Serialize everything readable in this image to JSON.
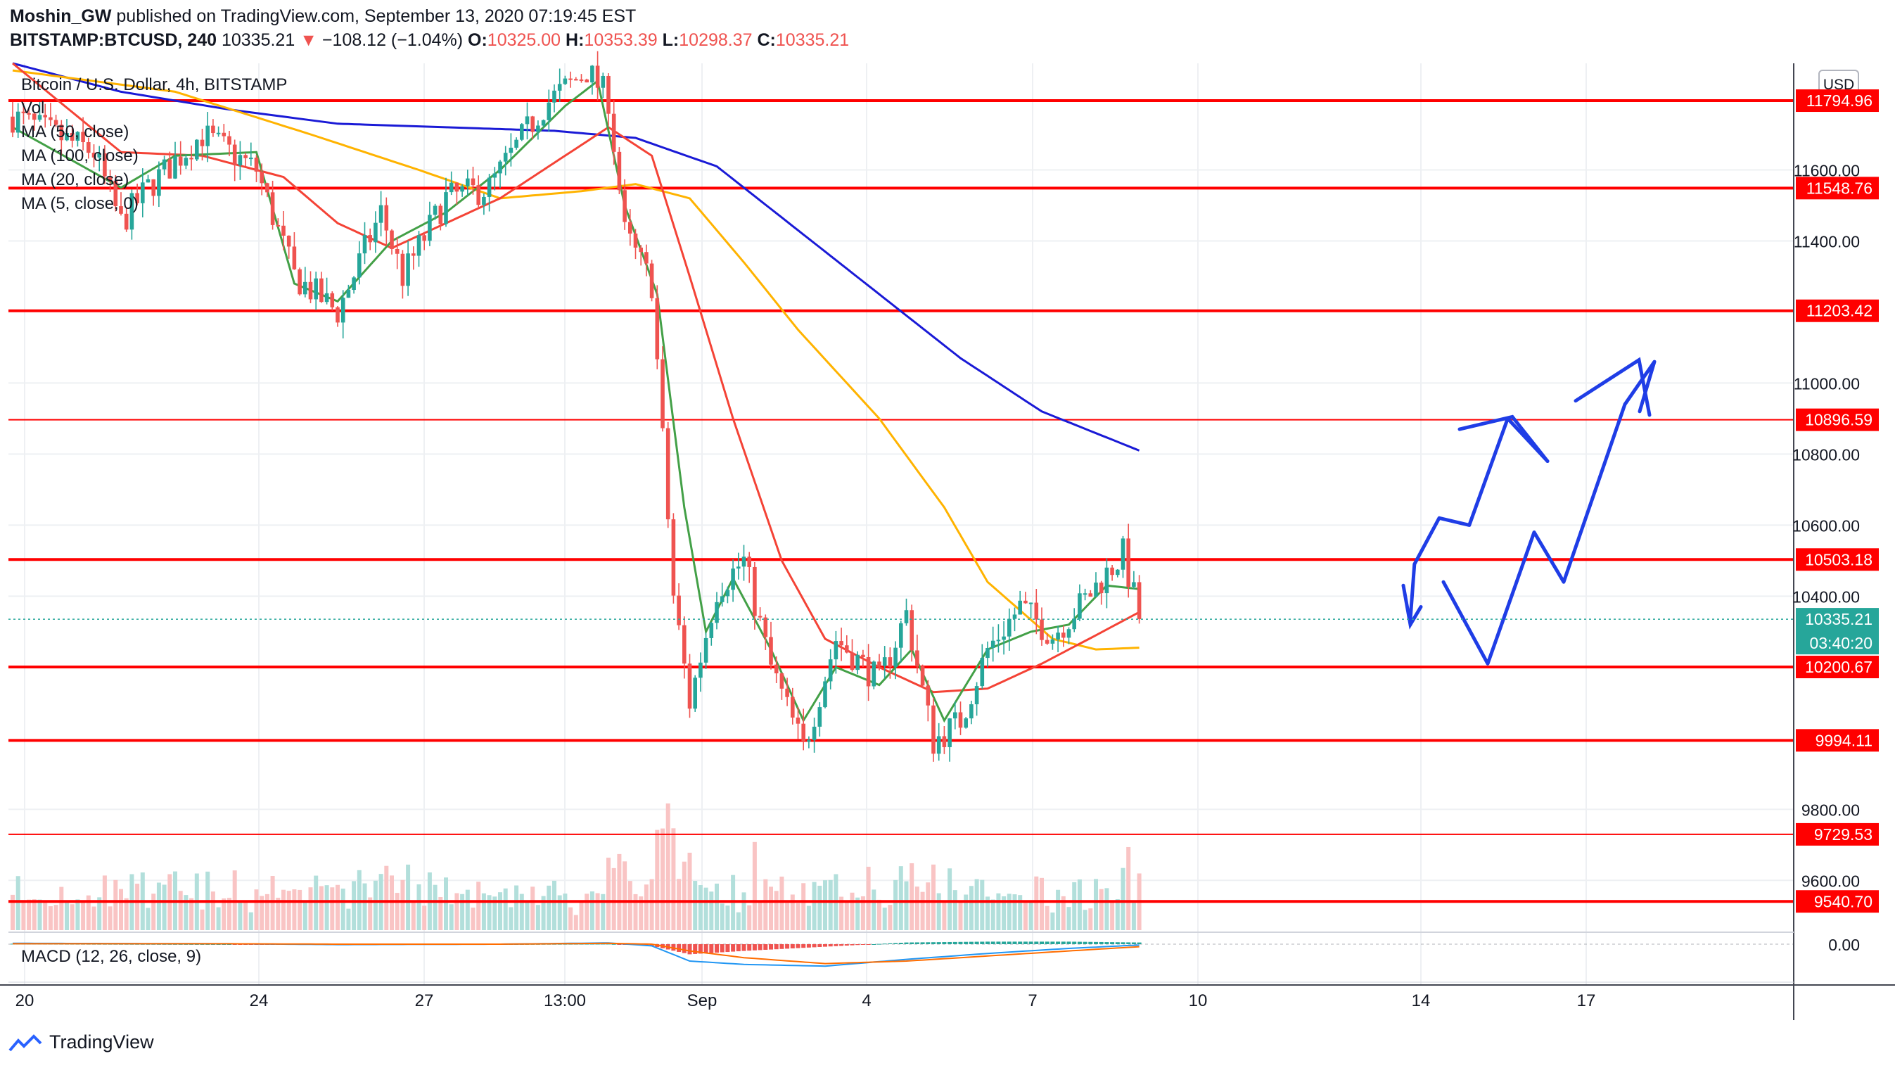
{
  "publish_line": {
    "author": "Moshin_GW",
    "text": "published on TradingView.com, September 13, 2020 07:19:45 EST"
  },
  "symbol_line": {
    "symbol": "BITSTAMP:BTCUSD, 240",
    "last": "10335.21",
    "change": "−108.12 (−1.04%)",
    "o_label": "O:",
    "o": "10325.00",
    "h_label": "H:",
    "h": "10353.39",
    "l_label": "L:",
    "l": "10298.37",
    "c_label": "C:",
    "c": "10335.21"
  },
  "legend": {
    "title": "Bitcoin / U.S. Dollar, 4h, BITSTAMP",
    "items": [
      "Vol",
      "MA (50, close)",
      "MA (100, close)",
      "MA (20, close)",
      "MA (5, close, 0)"
    ]
  },
  "macd_label": "MACD (12, 26, close, 9)",
  "currency_button": "USD",
  "footer_brand": "TradingView",
  "colors": {
    "up": "#26a69a",
    "down": "#ef5350",
    "level": "#ff0000",
    "ma5": "#43a047",
    "ma20": "#f44336",
    "ma50": "#ffb300",
    "ma100": "#1a1ad6",
    "drawing": "#1f3de6",
    "price_tag": "#26a69a"
  },
  "chart_data": {
    "type": "candlestick",
    "interval": "4h",
    "ylim": [
      9460,
      11900
    ],
    "y_ticks": [
      9600,
      9800,
      10400,
      10600,
      10800,
      11000,
      11400,
      11600
    ],
    "y_tick_labels": [
      "9600.00",
      "9800.00",
      "10400.00",
      "10600.00",
      "10800.00",
      "11000.00",
      "11400.00",
      "11600.00"
    ],
    "x_ticks": [
      "20",
      "24",
      "27",
      "13:00",
      "Sep",
      "4",
      "7",
      "10",
      "14",
      "17"
    ],
    "levels": [
      11794.96,
      11548.76,
      11203.42,
      10896.59,
      10503.18,
      10200.67,
      9994.11,
      9729.53,
      9540.7
    ],
    "level_labels": [
      "11794.96",
      "11548.76",
      "11203.42",
      "10896.59",
      "10503.18",
      "10200.67",
      "9994.11",
      "9729.53",
      "9540.70"
    ],
    "last_price": 10335.21,
    "last_price_label": "10335.21",
    "countdown": "03:40:20",
    "macd_zero_label": "0.00",
    "price_keypoints": [
      [
        0,
        11750
      ],
      [
        15,
        11650
      ],
      [
        20,
        11450
      ],
      [
        25,
        11550
      ],
      [
        35,
        11700
      ],
      [
        45,
        11600
      ],
      [
        52,
        11300
      ],
      [
        60,
        11200
      ],
      [
        68,
        11480
      ],
      [
        72,
        11300
      ],
      [
        80,
        11520
      ],
      [
        88,
        11550
      ],
      [
        98,
        11780
      ],
      [
        106,
        11880
      ],
      [
        110,
        11800
      ],
      [
        113,
        11420
      ],
      [
        118,
        11280
      ],
      [
        122,
        10400
      ],
      [
        125,
        10100
      ],
      [
        130,
        10420
      ],
      [
        135,
        10500
      ],
      [
        140,
        10200
      ],
      [
        146,
        9970
      ],
      [
        152,
        10280
      ],
      [
        160,
        10160
      ],
      [
        165,
        10350
      ],
      [
        170,
        9990
      ],
      [
        175,
        10050
      ],
      [
        180,
        10250
      ],
      [
        186,
        10370
      ],
      [
        192,
        10290
      ],
      [
        198,
        10390
      ],
      [
        205,
        10520
      ],
      [
        208,
        10340
      ]
    ],
    "ma_keypoints": {
      "ma5": [
        [
          0,
          11720
        ],
        [
          20,
          11550
        ],
        [
          30,
          11640
        ],
        [
          45,
          11650
        ],
        [
          52,
          11280
        ],
        [
          60,
          11230
        ],
        [
          70,
          11400
        ],
        [
          80,
          11480
        ],
        [
          90,
          11600
        ],
        [
          102,
          11780
        ],
        [
          108,
          11850
        ],
        [
          113,
          11500
        ],
        [
          119,
          11250
        ],
        [
          124,
          10650
        ],
        [
          128,
          10300
        ],
        [
          133,
          10450
        ],
        [
          140,
          10250
        ],
        [
          146,
          10050
        ],
        [
          152,
          10200
        ],
        [
          160,
          10150
        ],
        [
          166,
          10250
        ],
        [
          172,
          10050
        ],
        [
          180,
          10250
        ],
        [
          188,
          10300
        ],
        [
          195,
          10320
        ],
        [
          202,
          10430
        ],
        [
          208,
          10420
        ]
      ],
      "ma20": [
        [
          0,
          11900
        ],
        [
          20,
          11650
        ],
        [
          35,
          11640
        ],
        [
          50,
          11580
        ],
        [
          60,
          11450
        ],
        [
          70,
          11380
        ],
        [
          80,
          11450
        ],
        [
          90,
          11520
        ],
        [
          100,
          11620
        ],
        [
          110,
          11720
        ],
        [
          118,
          11640
        ],
        [
          125,
          11300
        ],
        [
          133,
          10900
        ],
        [
          142,
          10500
        ],
        [
          150,
          10280
        ],
        [
          160,
          10200
        ],
        [
          170,
          10130
        ],
        [
          180,
          10140
        ],
        [
          190,
          10210
        ],
        [
          200,
          10290
        ],
        [
          208,
          10355
        ]
      ],
      "ma50": [
        [
          0,
          11880
        ],
        [
          30,
          11820
        ],
        [
          55,
          11700
        ],
        [
          75,
          11600
        ],
        [
          90,
          11520
        ],
        [
          105,
          11540
        ],
        [
          115,
          11560
        ],
        [
          125,
          11520
        ],
        [
          135,
          11340
        ],
        [
          145,
          11150
        ],
        [
          160,
          10900
        ],
        [
          172,
          10650
        ],
        [
          180,
          10440
        ],
        [
          192,
          10280
        ],
        [
          200,
          10250
        ],
        [
          208,
          10255
        ]
      ],
      "ma100": [
        [
          0,
          11900
        ],
        [
          20,
          11820
        ],
        [
          40,
          11770
        ],
        [
          60,
          11730
        ],
        [
          80,
          11720
        ],
        [
          100,
          11710
        ],
        [
          115,
          11690
        ],
        [
          130,
          11610
        ],
        [
          145,
          11430
        ],
        [
          160,
          11250
        ],
        [
          175,
          11070
        ],
        [
          190,
          10920
        ],
        [
          208,
          10810
        ]
      ]
    },
    "macd_keypoints": {
      "macd": [
        [
          0,
          10
        ],
        [
          40,
          5
        ],
        [
          60,
          -5
        ],
        [
          90,
          0
        ],
        [
          110,
          15
        ],
        [
          118,
          -20
        ],
        [
          125,
          -200
        ],
        [
          135,
          -240
        ],
        [
          150,
          -260
        ],
        [
          165,
          -180
        ],
        [
          180,
          -110
        ],
        [
          195,
          -50
        ],
        [
          208,
          -10
        ]
      ],
      "signal": [
        [
          0,
          5
        ],
        [
          40,
          5
        ],
        [
          60,
          0
        ],
        [
          90,
          0
        ],
        [
          110,
          10
        ],
        [
          118,
          0
        ],
        [
          125,
          -80
        ],
        [
          135,
          -160
        ],
        [
          150,
          -230
        ],
        [
          165,
          -200
        ],
        [
          180,
          -140
        ],
        [
          195,
          -80
        ],
        [
          208,
          -30
        ]
      ]
    },
    "drawn_path": [
      [
        10335,
        0
      ],
      [
        10490,
        0.03
      ],
      [
        10620,
        0.21
      ],
      [
        10600,
        0.43
      ],
      [
        10900,
        0.71
      ],
      [
        10780,
        1.0
      ],
      [
        10440,
        0.0
      ],
      [
        10210,
        0.21
      ],
      [
        10580,
        0.43
      ],
      [
        10440,
        0.57
      ],
      [
        10940,
        0.86
      ],
      [
        11060,
        1.0
      ],
      [
        10920,
        0.93
      ]
    ]
  }
}
